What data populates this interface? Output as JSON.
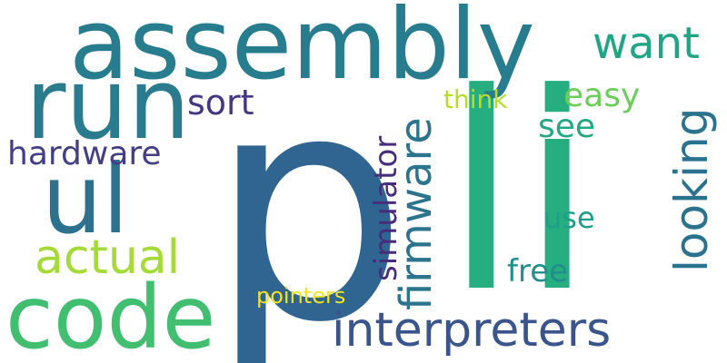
{
  "wordcloud": {
    "words": [
      {
        "id": "p",
        "text": "p",
        "color": "#306591",
        "rotation": 0
      },
      {
        "id": "li",
        "text": "li",
        "color": "#27ae80",
        "rotation": 0
      },
      {
        "id": "assembly",
        "text": "assembly",
        "color": "#277d8e",
        "rotation": 0
      },
      {
        "id": "run",
        "text": "run",
        "color": "#2b7b8e",
        "rotation": 0
      },
      {
        "id": "ul",
        "text": "ul",
        "color": "#2c728e",
        "rotation": 0
      },
      {
        "id": "code",
        "text": "code",
        "color": "#42be70",
        "rotation": 0
      },
      {
        "id": "interpreters",
        "text": "interpreters",
        "color": "#3a548c",
        "rotation": 0
      },
      {
        "id": "firmware",
        "text": "firmware",
        "color": "#2c738e",
        "rotation": -90
      },
      {
        "id": "looking",
        "text": "looking",
        "color": "#2b728e",
        "rotation": -90
      },
      {
        "id": "simulator",
        "text": "simulator",
        "color": "#472e7c",
        "rotation": -90
      },
      {
        "id": "actual",
        "text": "actual",
        "color": "#a5db36",
        "rotation": 0
      },
      {
        "id": "want",
        "text": "want",
        "color": "#21a585",
        "rotation": 0
      },
      {
        "id": "hardware",
        "text": "hardware",
        "color": "#433e85",
        "rotation": 0
      },
      {
        "id": "sort",
        "text": "sort",
        "color": "#453781",
        "rotation": 0
      },
      {
        "id": "easy",
        "text": "easy",
        "color": "#6ccd5a",
        "rotation": 0
      },
      {
        "id": "see",
        "text": "see",
        "color": "#22a884",
        "rotation": 0
      },
      {
        "id": "use",
        "text": "use",
        "color": "#1f9e89",
        "rotation": 0
      },
      {
        "id": "free",
        "text": "free",
        "color": "#218e8d",
        "rotation": 0
      },
      {
        "id": "think",
        "text": "think",
        "color": "#b5de2b",
        "rotation": 0
      },
      {
        "id": "pointers",
        "text": "pointers",
        "color": "#f2e41e",
        "rotation": 0
      }
    ]
  }
}
